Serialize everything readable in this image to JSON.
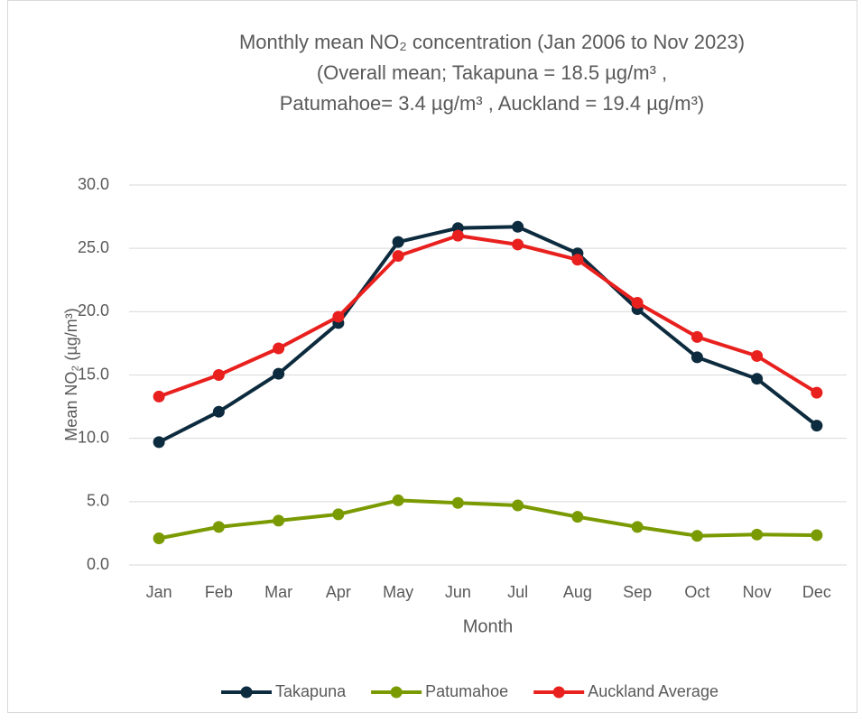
{
  "chart_data": {
    "type": "line",
    "title": [
      "Monthly mean NO₂ concentration (Jan 2006 to Nov 2023)",
      "(Overall mean; Takapuna = 18.5 µg/m³ ,",
      "Patumahoe= 3.4 µg/m³ , Auckland = 19.4 µg/m³)"
    ],
    "x_label": "Month",
    "y_label": "Mean NO₂ (µg/m³)",
    "categories": [
      "Jan",
      "Feb",
      "Mar",
      "Apr",
      "May",
      "Jun",
      "Jul",
      "Aug",
      "Sep",
      "Oct",
      "Nov",
      "Dec"
    ],
    "series": [
      {
        "name": "Takapuna",
        "color": "#0d2b3e",
        "values": [
          9.7,
          12.1,
          15.1,
          19.1,
          25.5,
          26.6,
          26.7,
          24.6,
          20.2,
          16.4,
          14.7,
          11.0
        ]
      },
      {
        "name": "Patumahoe",
        "color": "#7a9a01",
        "values": [
          2.1,
          3.0,
          3.5,
          4.0,
          5.1,
          4.9,
          4.7,
          3.8,
          3.0,
          2.3,
          2.4,
          2.35
        ]
      },
      {
        "name": "Auckland Average",
        "color": "#e8201e",
        "values": [
          13.3,
          15.0,
          17.1,
          19.6,
          24.4,
          26.0,
          25.3,
          24.1,
          20.7,
          18.0,
          16.5,
          13.6
        ]
      }
    ],
    "ylim": [
      0,
      30
    ],
    "yticks": [
      {
        "value": 0,
        "label": "0.0"
      },
      {
        "value": 5,
        "label": "5.0"
      },
      {
        "value": 10,
        "label": "10.0"
      },
      {
        "value": 15,
        "label": "15.0"
      },
      {
        "value": 20,
        "label": "20.0"
      },
      {
        "value": 25,
        "label": "25.0"
      },
      {
        "value": 30,
        "label": "30.0"
      }
    ],
    "grid": true,
    "legend": "bottom"
  }
}
